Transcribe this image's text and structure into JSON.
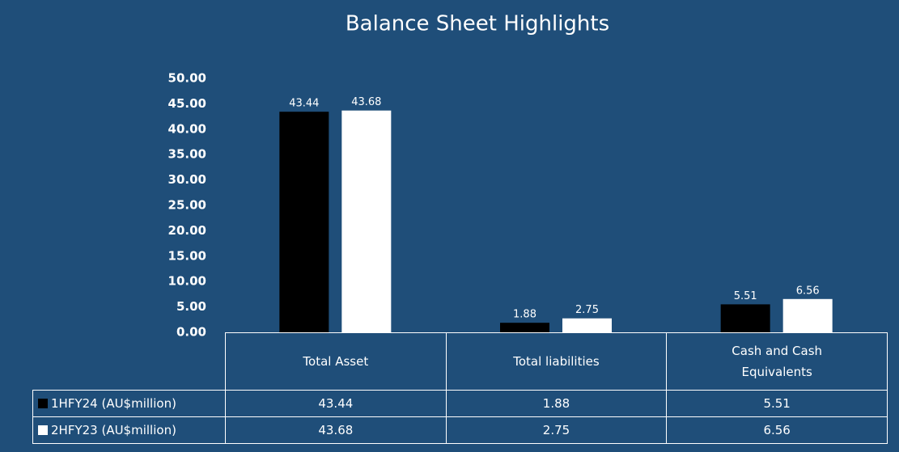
{
  "chart_data": {
    "type": "bar",
    "title": "Balance Sheet Highlights",
    "categories": [
      "Total Asset",
      "Total liabilities",
      "Cash and Cash Equivalents"
    ],
    "series": [
      {
        "name": "1HFY24 (AU$million)",
        "color": "#000000",
        "values": [
          43.44,
          1.88,
          5.51
        ]
      },
      {
        "name": "2HFY23 (AU$million)",
        "color": "#ffffff",
        "values": [
          43.68,
          2.75,
          6.56
        ]
      }
    ],
    "ylim": [
      0,
      50
    ],
    "yticks": [
      {
        "value": 0,
        "label": "0.00"
      },
      {
        "value": 5,
        "label": "5.00"
      },
      {
        "value": 10,
        "label": "10.00"
      },
      {
        "value": 15,
        "label": "15.00"
      },
      {
        "value": 20,
        "label": "20.00"
      },
      {
        "value": 25,
        "label": "25.00"
      },
      {
        "value": 30,
        "label": "30.00"
      },
      {
        "value": 35,
        "label": "35.00"
      },
      {
        "value": 40,
        "label": "40.00"
      },
      {
        "value": 45,
        "label": "45.00"
      },
      {
        "value": 50,
        "label": "50.00"
      }
    ],
    "grid": false,
    "data_table": true
  }
}
